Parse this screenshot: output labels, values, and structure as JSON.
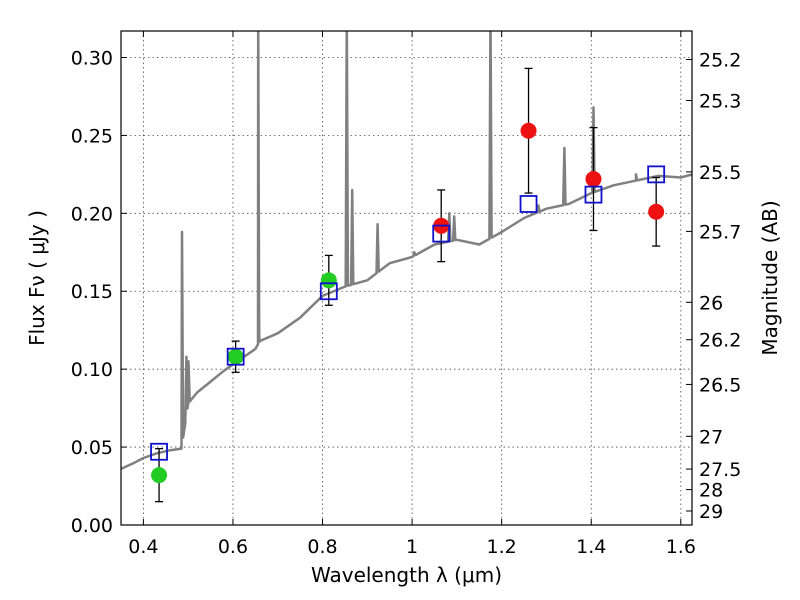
{
  "chart_data": {
    "type": "scatter",
    "xlabel": "Wavelength  λ (μm)",
    "ylabel": "Flux  Fν  ( μJy )",
    "ylabel_right": "Magnitude (AB)",
    "xlim": [
      0.35,
      1.625
    ],
    "ylim": [
      0.0,
      0.317
    ],
    "x_ticks": [
      "0.4",
      "0.6",
      "0.8",
      "1",
      "1.2",
      "1.4",
      "1.6"
    ],
    "y_ticks": [
      "0.00",
      "0.05",
      "0.10",
      "0.15",
      "0.20",
      "0.25",
      "0.30"
    ],
    "right_ticks": [
      {
        "label": "25.2",
        "flux": 0.2987
      },
      {
        "label": "25.3",
        "flux": 0.2724
      },
      {
        "label": "25.5",
        "flux": 0.2266
      },
      {
        "label": "25.7",
        "flux": 0.1884
      },
      {
        "label": "26",
        "flux": 0.1429
      },
      {
        "label": "26.2",
        "flux": 0.1189
      },
      {
        "label": "26.5",
        "flux": 0.0902
      },
      {
        "label": "27",
        "flux": 0.0569
      },
      {
        "label": "27.5",
        "flux": 0.0359
      },
      {
        "label": "28",
        "flux": 0.0227
      },
      {
        "label": "29",
        "flux": 0.009
      }
    ],
    "grid": true,
    "series": [
      {
        "marker": "circle",
        "color": "#22cc22",
        "points": [
          {
            "x": 0.435,
            "y": 0.032,
            "yerr": 0.017
          },
          {
            "x": 0.606,
            "y": 0.108,
            "yerr": 0.01
          },
          {
            "x": 0.814,
            "y": 0.157,
            "yerr": 0.016
          }
        ]
      },
      {
        "marker": "circle",
        "color": "#ee1111",
        "points": [
          {
            "x": 1.065,
            "y": 0.192,
            "yerr": 0.023
          },
          {
            "x": 1.26,
            "y": 0.253,
            "yerr": 0.04
          },
          {
            "x": 1.405,
            "y": 0.222,
            "yerr": 0.033
          },
          {
            "x": 1.545,
            "y": 0.201,
            "yerr": 0.022
          }
        ]
      },
      {
        "marker": "open-square",
        "color": "#1111cc",
        "points": [
          {
            "x": 0.435,
            "y": 0.047
          },
          {
            "x": 0.606,
            "y": 0.108
          },
          {
            "x": 0.814,
            "y": 0.15
          },
          {
            "x": 1.065,
            "y": 0.187
          },
          {
            "x": 1.26,
            "y": 0.206
          },
          {
            "x": 1.405,
            "y": 0.212
          },
          {
            "x": 1.545,
            "y": 0.225
          }
        ]
      }
    ],
    "spectrum": {
      "color": "#808080",
      "continuum": [
        [
          0.35,
          0.036
        ],
        [
          0.38,
          0.04
        ],
        [
          0.4,
          0.043
        ],
        [
          0.43,
          0.046
        ],
        [
          0.46,
          0.048
        ],
        [
          0.485,
          0.049
        ],
        [
          0.5,
          0.078
        ],
        [
          0.52,
          0.085
        ],
        [
          0.55,
          0.092
        ],
        [
          0.58,
          0.099
        ],
        [
          0.61,
          0.105
        ],
        [
          0.65,
          0.113
        ],
        [
          0.66,
          0.118
        ],
        [
          0.7,
          0.123
        ],
        [
          0.75,
          0.133
        ],
        [
          0.8,
          0.147
        ],
        [
          0.85,
          0.153
        ],
        [
          0.9,
          0.157
        ],
        [
          0.95,
          0.168
        ],
        [
          1.0,
          0.172
        ],
        [
          1.05,
          0.18
        ],
        [
          1.1,
          0.183
        ],
        [
          1.15,
          0.18
        ],
        [
          1.2,
          0.188
        ],
        [
          1.25,
          0.197
        ],
        [
          1.3,
          0.203
        ],
        [
          1.35,
          0.206
        ],
        [
          1.4,
          0.213
        ],
        [
          1.45,
          0.218
        ],
        [
          1.5,
          0.221
        ],
        [
          1.55,
          0.224
        ],
        [
          1.6,
          0.223
        ],
        [
          1.625,
          0.225
        ]
      ],
      "lines": [
        {
          "x": 0.4862,
          "y": 0.188
        },
        {
          "x": 0.496,
          "y": 0.108
        },
        {
          "x": 0.5008,
          "y": 0.105
        },
        {
          "x": 0.6564,
          "y": 0.33
        },
        {
          "x": 0.6584,
          "y": 0.135
        },
        {
          "x": 0.8542,
          "y": 0.33
        },
        {
          "x": 0.8662,
          "y": 0.215
        },
        {
          "x": 0.923,
          "y": 0.193
        },
        {
          "x": 1.005,
          "y": 0.175
        },
        {
          "x": 1.083,
          "y": 0.2
        },
        {
          "x": 1.094,
          "y": 0.198
        },
        {
          "x": 1.175,
          "y": 0.33
        },
        {
          "x": 1.282,
          "y": 0.205
        },
        {
          "x": 1.34,
          "y": 0.242
        },
        {
          "x": 1.405,
          "y": 0.268
        },
        {
          "x": 1.5,
          "y": 0.225
        }
      ]
    }
  }
}
